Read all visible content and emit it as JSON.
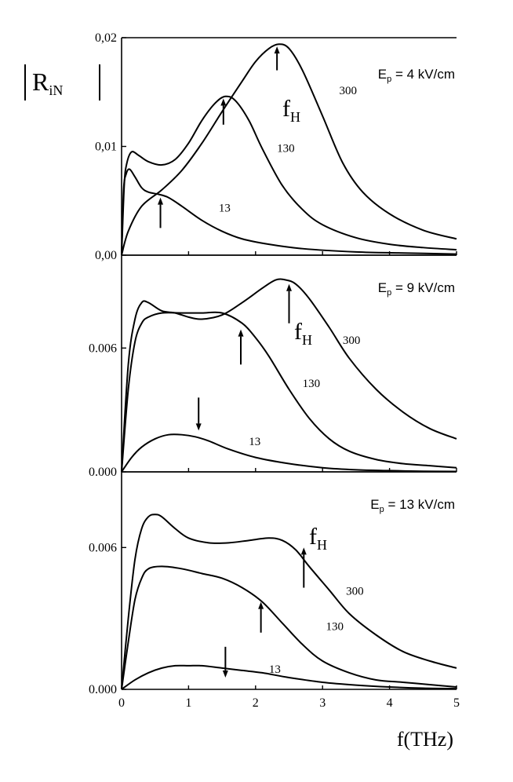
{
  "chart_data": [
    {
      "type": "line",
      "field_label": {
        "main": "E",
        "sub": "p",
        "rest": " = 4 kV/cm"
      },
      "fh_label": {
        "main": "f",
        "sub": "H"
      },
      "xlim": [
        0,
        5
      ],
      "ylim": [
        0,
        0.02
      ],
      "y_ticks": [
        "0,02",
        "0,01",
        "0,00"
      ],
      "y_tick_values": [
        0.02,
        0.01,
        0.0
      ],
      "series": [
        {
          "name": "300",
          "x": [
            0,
            0.1,
            0.3,
            0.6,
            0.9,
            1.2,
            1.5,
            1.8,
            2.0,
            2.2,
            2.35,
            2.5,
            2.7,
            3.0,
            3.3,
            3.6,
            4.0,
            4.5,
            5.0
          ],
          "y": [
            0,
            0.0022,
            0.0045,
            0.006,
            0.0078,
            0.0103,
            0.0132,
            0.016,
            0.0178,
            0.019,
            0.0194,
            0.019,
            0.017,
            0.0128,
            0.0085,
            0.0058,
            0.0038,
            0.0023,
            0.0015
          ]
        },
        {
          "name": "130",
          "x": [
            0,
            0.04,
            0.08,
            0.15,
            0.25,
            0.4,
            0.6,
            0.8,
            1.0,
            1.2,
            1.4,
            1.55,
            1.7,
            1.9,
            2.1,
            2.4,
            2.7,
            3.0,
            3.5,
            4.0,
            4.5,
            5.0
          ],
          "y": [
            0,
            0.0065,
            0.0085,
            0.0095,
            0.0092,
            0.0086,
            0.0083,
            0.0088,
            0.0103,
            0.0124,
            0.014,
            0.0146,
            0.0142,
            0.0124,
            0.0098,
            0.0064,
            0.0042,
            0.0028,
            0.0016,
            0.001,
            0.0007,
            0.0005
          ]
        },
        {
          "name": "13",
          "x": [
            0,
            0.03,
            0.07,
            0.12,
            0.2,
            0.3,
            0.4,
            0.55,
            0.7,
            0.9,
            1.2,
            1.5,
            1.8,
            2.2,
            2.7,
            3.5,
            4.2,
            5.0
          ],
          "y": [
            0,
            0.006,
            0.0075,
            0.0079,
            0.0072,
            0.0062,
            0.0058,
            0.0056,
            0.0053,
            0.0045,
            0.0032,
            0.0022,
            0.0015,
            0.001,
            0.0006,
            0.0003,
            0.0002,
            0.0001
          ]
        }
      ],
      "series_labels": [
        {
          "text": "300",
          "x": 3.25,
          "y": 0.0148
        },
        {
          "text": "130",
          "x": 2.32,
          "y": 0.0095
        },
        {
          "text": "13",
          "x": 1.45,
          "y": 0.004
        }
      ],
      "arrows": [
        {
          "x": 2.32,
          "tip": 0.0192,
          "tail": 0.017,
          "dir": "up"
        },
        {
          "x": 1.52,
          "tip": 0.0144,
          "tail": 0.012,
          "dir": "up"
        },
        {
          "x": 0.58,
          "tip": 0.0053,
          "tail": 0.0025,
          "dir": "up"
        }
      ]
    },
    {
      "type": "line",
      "field_label": {
        "main": "E",
        "sub": "p",
        "rest": " = 9 kV/cm"
      },
      "fh_label": {
        "main": "f",
        "sub": "H"
      },
      "xlim": [
        0,
        5
      ],
      "ylim": [
        0,
        0.0105
      ],
      "y_ticks": [
        "0.006",
        "0.000"
      ],
      "y_tick_values": [
        0.006,
        0.0
      ],
      "series": [
        {
          "name": "300",
          "x": [
            0,
            0.1,
            0.2,
            0.3,
            0.4,
            0.6,
            0.8,
            1.0,
            1.2,
            1.5,
            1.8,
            2.1,
            2.3,
            2.45,
            2.6,
            2.8,
            3.1,
            3.4,
            3.8,
            4.2,
            4.6,
            5.0
          ],
          "y": [
            0,
            0.0052,
            0.0074,
            0.0082,
            0.0082,
            0.0078,
            0.0077,
            0.0075,
            0.0074,
            0.0076,
            0.0082,
            0.0089,
            0.0093,
            0.0093,
            0.0091,
            0.0084,
            0.007,
            0.0055,
            0.004,
            0.0029,
            0.0021,
            0.0016
          ]
        },
        {
          "name": "130",
          "x": [
            0,
            0.1,
            0.2,
            0.3,
            0.4,
            0.6,
            0.9,
            1.2,
            1.5,
            1.8,
            2.0,
            2.2,
            2.5,
            2.8,
            3.1,
            3.4,
            3.8,
            4.2,
            4.6,
            5.0
          ],
          "y": [
            0,
            0.004,
            0.0063,
            0.0072,
            0.0075,
            0.0077,
            0.0077,
            0.0077,
            0.0077,
            0.0072,
            0.0065,
            0.0056,
            0.004,
            0.0026,
            0.0016,
            0.001,
            0.0006,
            0.0004,
            0.0003,
            0.0002
          ]
        },
        {
          "name": "13",
          "x": [
            0,
            0.15,
            0.3,
            0.5,
            0.7,
            0.9,
            1.1,
            1.3,
            1.6,
            2.0,
            2.5,
            3.0,
            3.5,
            4.0,
            4.5,
            5.0
          ],
          "y": [
            0,
            0.0007,
            0.0012,
            0.0016,
            0.0018,
            0.0018,
            0.0017,
            0.0015,
            0.0011,
            0.0007,
            0.0004,
            0.0002,
            0.0001,
            6e-05,
            3e-05,
            2e-05
          ]
        }
      ],
      "series_labels": [
        {
          "text": "300",
          "x": 3.3,
          "y": 0.0062
        },
        {
          "text": "130",
          "x": 2.7,
          "y": 0.0041
        },
        {
          "text": "13",
          "x": 1.9,
          "y": 0.0013
        }
      ],
      "arrows": [
        {
          "x": 2.5,
          "tip": 0.0091,
          "tail": 0.0072,
          "dir": "up"
        },
        {
          "x": 1.78,
          "tip": 0.0069,
          "tail": 0.0052,
          "dir": "up"
        },
        {
          "x": 1.15,
          "tip": 0.002,
          "tail": 0.0036,
          "dir": "down"
        }
      ]
    },
    {
      "type": "line",
      "field_label": {
        "main": "E",
        "sub": "p",
        "rest": " = 13 kV/cm"
      },
      "fh_label": {
        "main": "f",
        "sub": "H"
      },
      "xlim": [
        0,
        5
      ],
      "ylim": [
        0,
        0.0092
      ],
      "y_ticks": [
        "0.006",
        "0.000"
      ],
      "y_tick_values": [
        0.006,
        0.0
      ],
      "series": [
        {
          "name": "300",
          "x": [
            0,
            0.1,
            0.2,
            0.3,
            0.4,
            0.5,
            0.6,
            0.8,
            1.0,
            1.3,
            1.6,
            1.9,
            2.2,
            2.4,
            2.6,
            2.8,
            3.1,
            3.4,
            3.8,
            4.2,
            4.6,
            5.0
          ],
          "y": [
            0,
            0.003,
            0.0055,
            0.0068,
            0.0073,
            0.0074,
            0.0073,
            0.0068,
            0.0064,
            0.0062,
            0.0062,
            0.0063,
            0.0064,
            0.0063,
            0.0059,
            0.0052,
            0.0042,
            0.0032,
            0.0023,
            0.0016,
            0.0012,
            0.0009
          ]
        },
        {
          "name": "130",
          "x": [
            0,
            0.1,
            0.2,
            0.3,
            0.4,
            0.6,
            0.9,
            1.2,
            1.5,
            1.8,
            2.1,
            2.4,
            2.7,
            3.0,
            3.4,
            3.8,
            4.2,
            4.6,
            5.0
          ],
          "y": [
            0,
            0.002,
            0.0038,
            0.0047,
            0.0051,
            0.0052,
            0.0051,
            0.0049,
            0.0047,
            0.0043,
            0.0037,
            0.0028,
            0.0019,
            0.0012,
            0.0007,
            0.0004,
            0.0003,
            0.0002,
            0.0001
          ]
        },
        {
          "name": "13",
          "x": [
            0,
            0.2,
            0.4,
            0.6,
            0.8,
            1.0,
            1.2,
            1.5,
            1.8,
            2.1,
            2.5,
            3.0,
            3.5,
            4.0,
            4.5,
            5.0
          ],
          "y": [
            0,
            0.0004,
            0.0007,
            0.0009,
            0.001,
            0.001,
            0.001,
            0.0009,
            0.0008,
            0.0007,
            0.0005,
            0.0003,
            0.00018,
            0.0001,
            5e-05,
            3e-05
          ]
        }
      ],
      "series_labels": [
        {
          "text": "300",
          "x": 3.35,
          "y": 0.004
        },
        {
          "text": "130",
          "x": 3.05,
          "y": 0.0025
        },
        {
          "text": "13",
          "x": 2.2,
          "y": 0.0007
        }
      ],
      "arrows": [
        {
          "x": 2.72,
          "tip": 0.006,
          "tail": 0.0043,
          "dir": "up"
        },
        {
          "x": 2.08,
          "tip": 0.0037,
          "tail": 0.0024,
          "dir": "up"
        },
        {
          "x": 1.55,
          "tip": 0.0005,
          "tail": 0.0018,
          "dir": "down"
        }
      ]
    }
  ],
  "y_axis_title": {
    "main": "R",
    "sub": "iN"
  },
  "x_axis_title": "f(THz)",
  "x_tick_labels": [
    "0",
    "1",
    "2",
    "3",
    "4",
    "5"
  ],
  "x_tick_values": [
    0,
    1,
    2,
    3,
    4,
    5
  ]
}
